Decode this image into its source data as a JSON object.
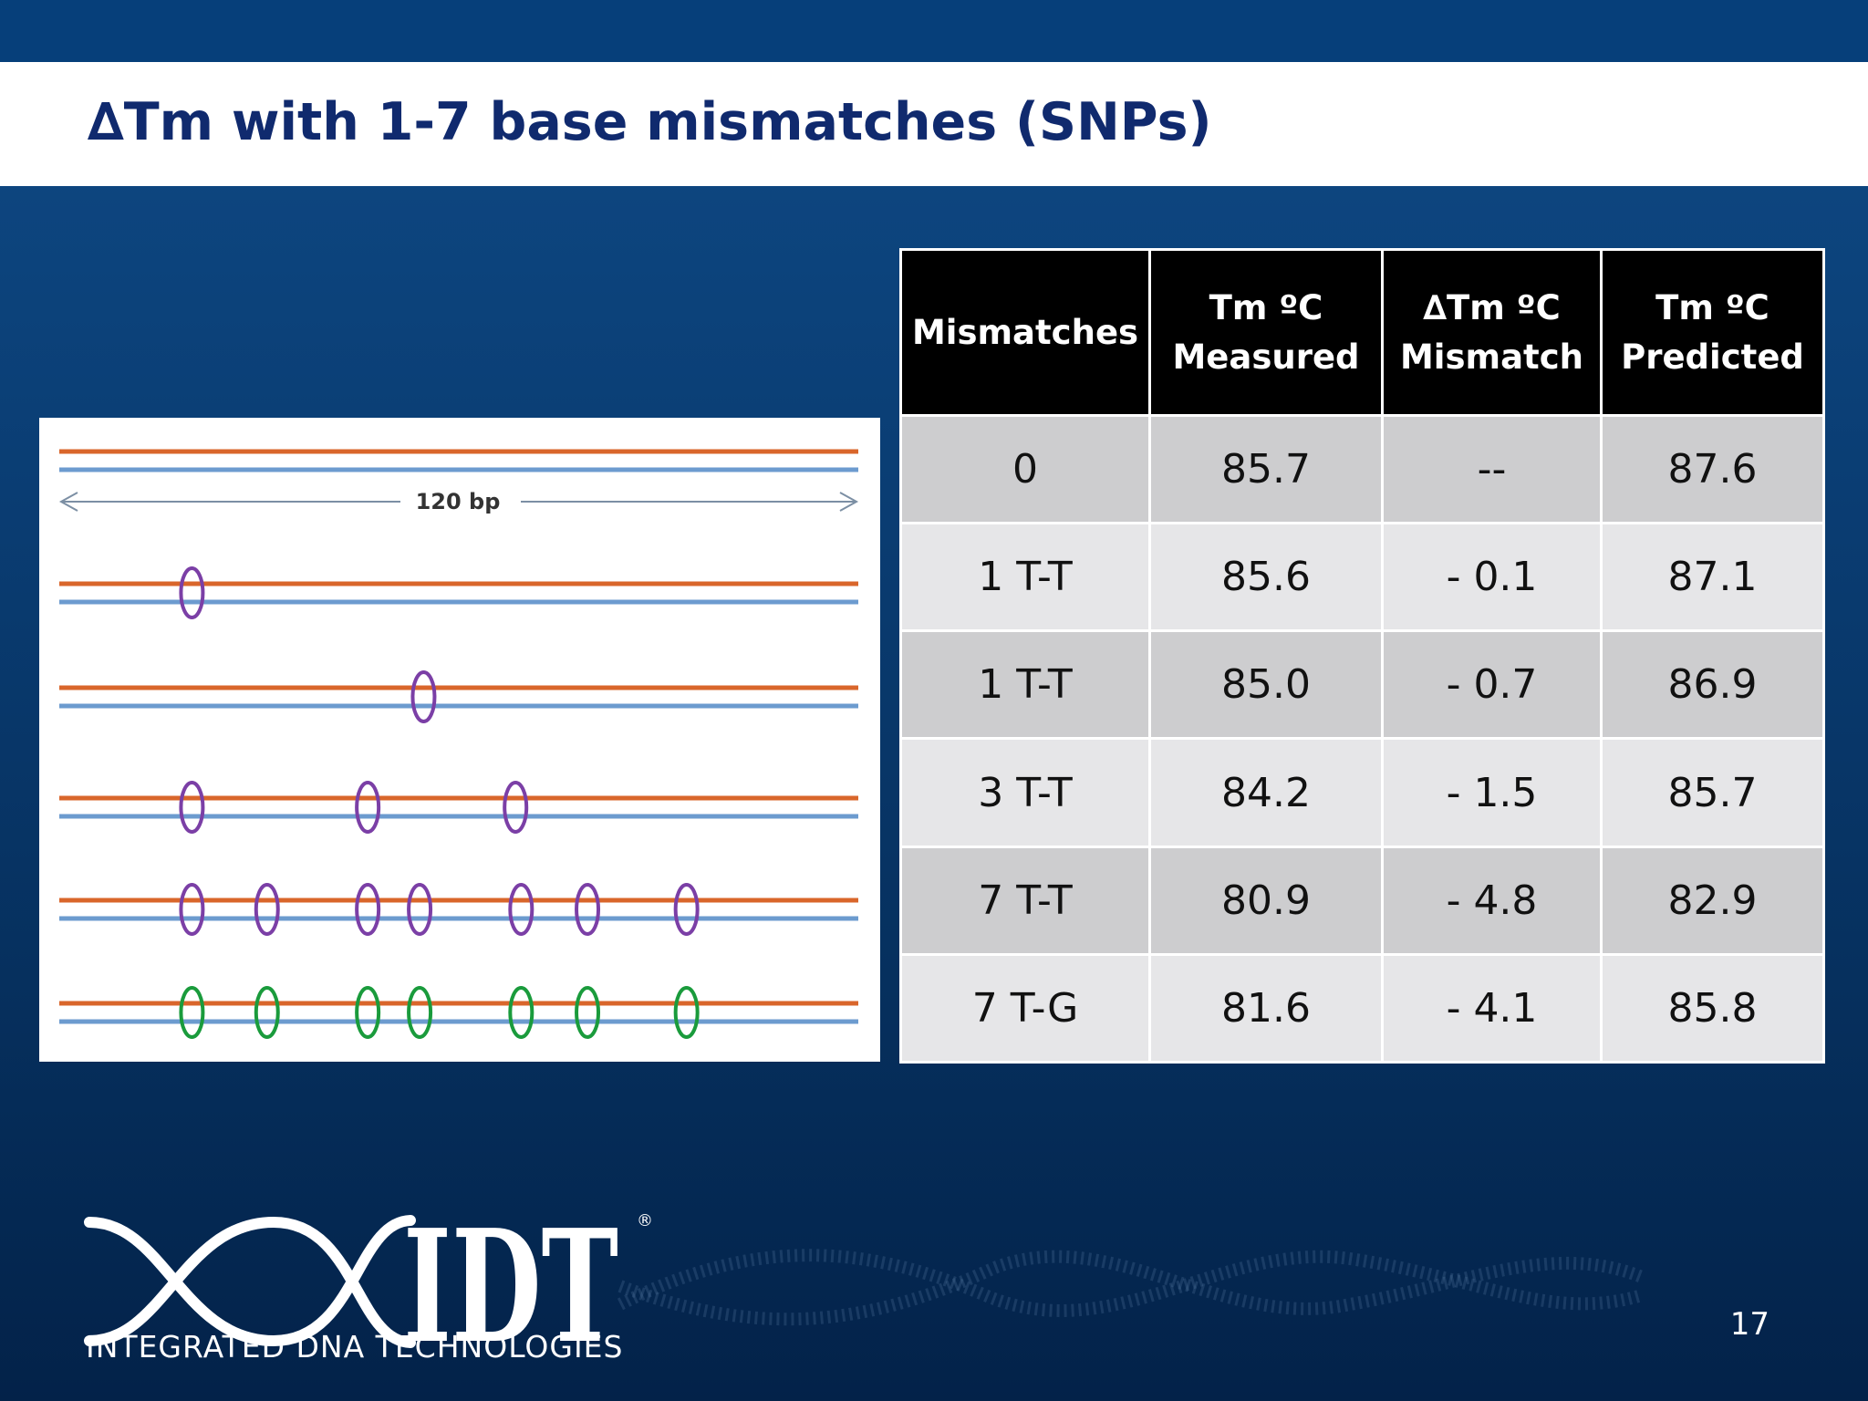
{
  "slide": {
    "title": "∆Tm with 1-7 base mismatches (SNPs)",
    "page_number": "17"
  },
  "diagram": {
    "length_label": "120 bp",
    "strand_colors": {
      "top": "#d9662b",
      "bottom": "#6c9bcf"
    },
    "rows": [
      {
        "mismatch_positions": [
          0.166
        ],
        "mismatch_color": "#7b3fa6"
      },
      {
        "mismatch_positions": [
          0.456
        ],
        "mismatch_color": "#7b3fa6"
      },
      {
        "mismatch_positions": [
          0.166,
          0.386,
          0.571
        ],
        "mismatch_color": "#7b3fa6"
      },
      {
        "mismatch_positions": [
          0.166,
          0.26,
          0.386,
          0.451,
          0.578,
          0.661,
          0.785
        ],
        "mismatch_color": "#7b3fa6"
      },
      {
        "mismatch_positions": [
          0.166,
          0.26,
          0.386,
          0.451,
          0.578,
          0.661,
          0.785
        ],
        "mismatch_color": "#1a9b3c"
      }
    ]
  },
  "table": {
    "headers": [
      {
        "line1": "Mismatches",
        "line2": ""
      },
      {
        "line1": "Tm  ºC",
        "line2": "Measured"
      },
      {
        "line1": "∆Tm ºC",
        "line2": "Mismatch"
      },
      {
        "line1": "Tm ºC",
        "line2": "Predicted"
      }
    ],
    "rows": [
      [
        "0",
        "85.7",
        "--",
        "87.6"
      ],
      [
        "1  T-T",
        "85.6",
        "- 0.1",
        "87.1"
      ],
      [
        "1  T-T",
        "85.0",
        "- 0.7",
        "86.9"
      ],
      [
        "3  T-T",
        "84.2",
        "- 1.5",
        "85.7"
      ],
      [
        "7  T-T",
        "80.9",
        "- 4.8",
        "82.9"
      ],
      [
        "7  T-G",
        "81.6",
        "- 4.1",
        "85.8"
      ]
    ]
  },
  "logo": {
    "wordmark": "IDT",
    "registered": "®",
    "company_name": "INTEGRATED DNA TECHNOLOGIES"
  },
  "colors": {
    "title": "#102a6e",
    "table_header_bg": "#000000",
    "table_row_dark": "#cdcdcf",
    "table_row_light": "#e6e6e8"
  }
}
